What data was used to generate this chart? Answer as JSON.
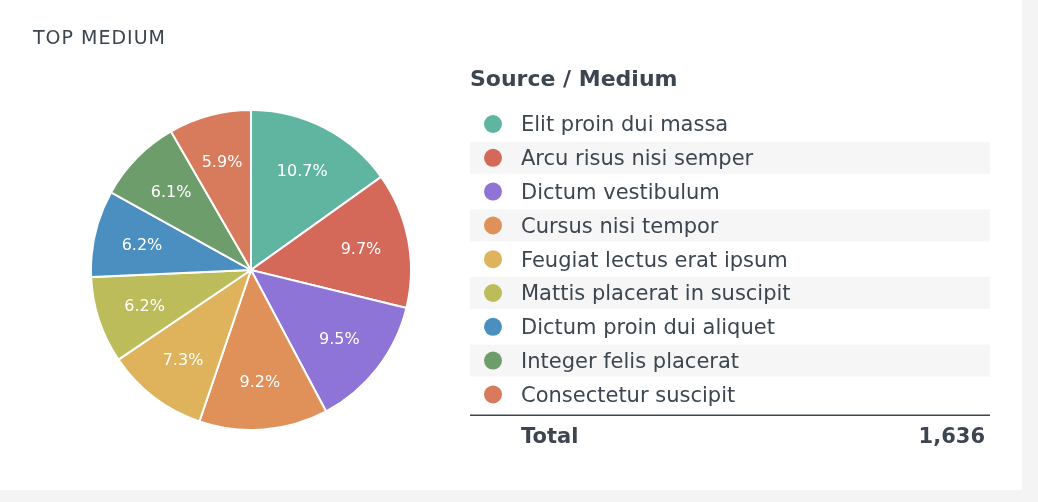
{
  "chart_data": {
    "type": "pie",
    "title": "TOP MEDIUM",
    "legend_title": "Source / Medium",
    "categories": [
      "Elit proin dui massa",
      "Arcu risus nisi semper",
      "Dictum vestibulum",
      "Cursus nisi tempor",
      "Feugiat lectus erat ipsum",
      "Mattis placerat in suscipit",
      "Dictum proin dui aliquet",
      "Integer felis placerat",
      "Consectetur suscipit"
    ],
    "values": [
      10.7,
      9.7,
      9.5,
      9.2,
      7.3,
      6.2,
      6.2,
      6.1,
      5.9
    ],
    "value_labels": [
      "10.7%",
      "9.7%",
      "9.5%",
      "9.2%",
      "7.3%",
      "6.2%",
      "6.2%",
      "6.1%",
      "5.9%"
    ],
    "colors": [
      "#5fb59f",
      "#d4695a",
      "#8e74d6",
      "#e0915a",
      "#dfb35c",
      "#bcbd5a",
      "#4a8fc0",
      "#6d9d6b",
      "#d87b5c"
    ],
    "legend": "right",
    "annotations": [
      "Total",
      "1,636"
    ]
  }
}
